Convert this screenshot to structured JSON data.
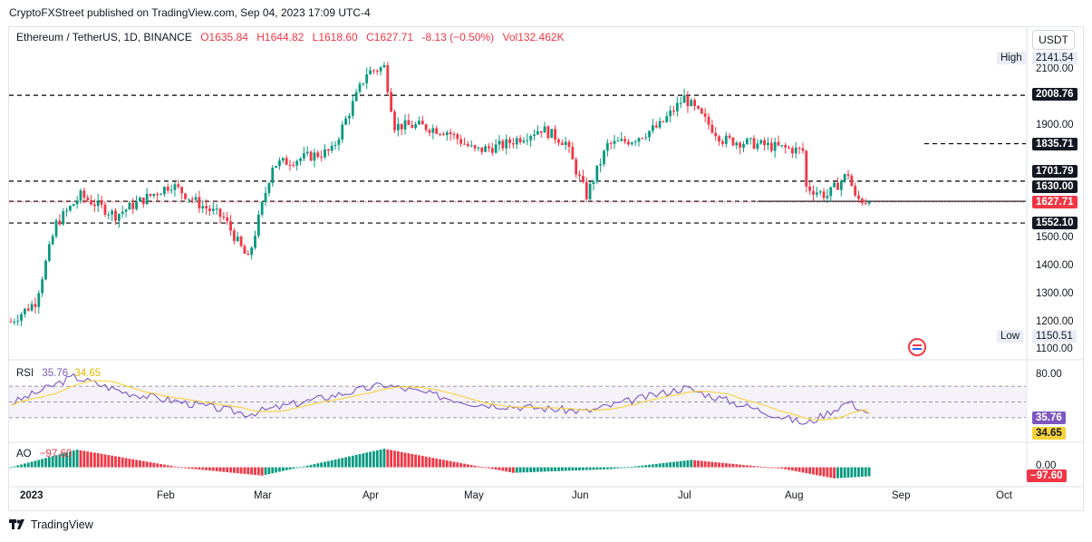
{
  "attribution": "CryptoFXStreet published on TradingView.com, Sep 04, 2023 17:09 UTC-4",
  "legend": {
    "symbol": "Ethereum / TetherUS, 1D, BINANCE",
    "open": "O1635.84",
    "high": "H1644.82",
    "low": "L1618.60",
    "close": "C1627.71",
    "change": "-8.13 (−0.50%)",
    "volume": "Vol132.462K"
  },
  "currency": "USDT",
  "colors": {
    "up": "#089981",
    "down": "#f23645",
    "rsi": "#7e57c2",
    "rsi_ma": "#f7d23a",
    "rsi_band": "#7e57c2",
    "level_line": "#000000",
    "current_price": "#f23645",
    "ao_up": "#089981",
    "ao_down": "#f23645"
  },
  "price_axis": {
    "ticks": [
      "2100.00",
      "1900.00",
      "1500.00",
      "1400.00",
      "1300.00",
      "1200.00",
      "1100.00"
    ],
    "high_label": "High",
    "high_value": "2141.54",
    "low_label": "Low",
    "low_value": "1150.51",
    "levels": [
      "2008.76",
      "1835.71",
      "1701.79",
      "1630.00",
      "1552.10"
    ],
    "current_price": "1627.71"
  },
  "rsi_pane": {
    "name": "RSI",
    "rsi_value": "35.76",
    "ma_value": "34.65",
    "axis_tick": "80.00",
    "badge_rsi": "35.76",
    "badge_ma": "34.65"
  },
  "ao_pane": {
    "name": "AO",
    "value": "−97.60",
    "axis_tick": "0.00",
    "badge": "−97.60"
  },
  "time_axis": [
    "2023",
    "Feb",
    "Mar",
    "Apr",
    "May",
    "Jun",
    "Jul",
    "Aug",
    "Sep",
    "Oct"
  ],
  "footer_brand": "TradingView",
  "chart_data": {
    "type": "candlestick",
    "symbol": "Ethereum / TetherUS",
    "interval": "1D",
    "ylim": [
      1100,
      2150
    ],
    "horizontal_levels": [
      2008.76,
      1835.71,
      1701.79,
      1630.0,
      1552.1
    ],
    "current_price": 1627.71,
    "anchors": [
      {
        "date": "2023-01-01",
        "close": 1200
      },
      {
        "date": "2023-01-08",
        "close": 1270
      },
      {
        "date": "2023-01-14",
        "close": 1550
      },
      {
        "date": "2023-01-21",
        "close": 1650
      },
      {
        "date": "2023-01-31",
        "close": 1580
      },
      {
        "date": "2023-02-07",
        "close": 1630
      },
      {
        "date": "2023-02-16",
        "close": 1690
      },
      {
        "date": "2023-02-24",
        "close": 1620
      },
      {
        "date": "2023-03-03",
        "close": 1570
      },
      {
        "date": "2023-03-10",
        "close": 1420
      },
      {
        "date": "2023-03-17",
        "close": 1760
      },
      {
        "date": "2023-03-24",
        "close": 1780
      },
      {
        "date": "2023-04-03",
        "close": 1810
      },
      {
        "date": "2023-04-13",
        "close": 2090
      },
      {
        "date": "2023-04-18",
        "close": 2110
      },
      {
        "date": "2023-04-21",
        "close": 1900
      },
      {
        "date": "2023-04-28",
        "close": 1900
      },
      {
        "date": "2023-05-06",
        "close": 1880
      },
      {
        "date": "2023-05-14",
        "close": 1810
      },
      {
        "date": "2023-05-22",
        "close": 1830
      },
      {
        "date": "2023-06-02",
        "close": 1890
      },
      {
        "date": "2023-06-09",
        "close": 1840
      },
      {
        "date": "2023-06-12",
        "close": 1740
      },
      {
        "date": "2023-06-15",
        "close": 1650
      },
      {
        "date": "2023-06-21",
        "close": 1830
      },
      {
        "date": "2023-06-28",
        "close": 1850
      },
      {
        "date": "2023-07-06",
        "close": 1900
      },
      {
        "date": "2023-07-13",
        "close": 2000
      },
      {
        "date": "2023-07-24",
        "close": 1850
      },
      {
        "date": "2023-08-05",
        "close": 1830
      },
      {
        "date": "2023-08-16",
        "close": 1810
      },
      {
        "date": "2023-08-17",
        "close": 1680
      },
      {
        "date": "2023-08-23",
        "close": 1650
      },
      {
        "date": "2023-08-29",
        "close": 1730
      },
      {
        "date": "2023-08-31",
        "close": 1640
      },
      {
        "date": "2023-09-04",
        "close": 1627.71
      }
    ],
    "rsi": {
      "ylim": [
        0,
        100
      ],
      "band": [
        30,
        70
      ],
      "anchors": [
        {
          "date": "2023-01-01",
          "value": 48
        },
        {
          "date": "2023-01-19",
          "value": 82
        },
        {
          "date": "2023-02-03",
          "value": 62
        },
        {
          "date": "2023-03-10",
          "value": 35
        },
        {
          "date": "2023-04-18",
          "value": 72
        },
        {
          "date": "2023-05-14",
          "value": 48
        },
        {
          "date": "2023-06-15",
          "value": 38
        },
        {
          "date": "2023-07-13",
          "value": 68
        },
        {
          "date": "2023-08-17",
          "value": 22
        },
        {
          "date": "2023-08-29",
          "value": 50
        },
        {
          "date": "2023-09-04",
          "value": 35.76
        }
      ],
      "ma_last": 34.65
    },
    "ao": {
      "ylim": [
        -200,
        250
      ],
      "anchors": [
        {
          "date": "2023-01-01",
          "value": 0
        },
        {
          "date": "2023-01-20",
          "value": 190
        },
        {
          "date": "2023-02-20",
          "value": -10
        },
        {
          "date": "2023-03-14",
          "value": -90
        },
        {
          "date": "2023-04-18",
          "value": 200
        },
        {
          "date": "2023-05-25",
          "value": -60
        },
        {
          "date": "2023-06-22",
          "value": -20
        },
        {
          "date": "2023-07-15",
          "value": 80
        },
        {
          "date": "2023-08-10",
          "value": -15
        },
        {
          "date": "2023-08-25",
          "value": -120
        },
        {
          "date": "2023-09-04",
          "value": -97.6
        }
      ]
    }
  }
}
